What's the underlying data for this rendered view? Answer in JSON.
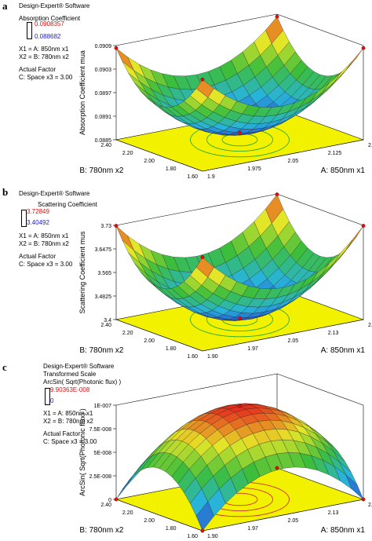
{
  "panels": [
    {
      "letter": "a",
      "software": "Design-Expert® Software",
      "scale_note": "",
      "response": "Absorption Coefficient",
      "max": "0.0908357",
      "min": "0.088682",
      "x1": "X1 = A: 850nm x1",
      "x2": "X2 = B: 780nm x2",
      "actual_factor": "Actual Factor",
      "factor_c": "C: Space x3 = 3.00",
      "zlabel": "Absorption Coefficient mua",
      "xlabel": "A: 850nm x1",
      "ylabel": "B: 780nm x2"
    },
    {
      "letter": "b",
      "software": "Design-Expert® Software",
      "scale_note": "",
      "response": "Scattering Coefficient",
      "max": "3.72849",
      "min": "3.40492",
      "x1": "X1 = A: 850nm x1",
      "x2": "X2 = B: 780nm x2",
      "actual_factor": "Actual Factor",
      "factor_c": "C: Space x3 = 3.00",
      "zlabel": "Scattering Coefficient mus",
      "xlabel": "A: 850nm x1",
      "ylabel": "B: 780nm x2"
    },
    {
      "letter": "c",
      "software": "Design-Expert® Software",
      "scale_note": "Transformed Scale",
      "response": "ArcSin( Sqrt(Photonic flux) )",
      "max": "9.90363E-008",
      "min": "0",
      "x1": "X1 = A: 850nm x1",
      "x2": "X2 = B: 780nm x2",
      "actual_factor": "Actual Factor",
      "factor_c": "C: Space x3 = 3.00",
      "zlabel": "ArcSin( Sqrt(Photonic flux) )",
      "xlabel": "A: 850nm x1",
      "ylabel": "B: 780nm x2"
    }
  ],
  "chart_data": [
    {
      "type": "surface",
      "title": "",
      "zlabel": "Absorption Coefficient mua",
      "xlabel": "A: 850nm x1",
      "ylabel": "B: 780nm x2",
      "x_ticks": [
        "1.9",
        "1.975",
        "2.05",
        "2.125",
        "2.2"
      ],
      "y_ticks": [
        "1.60",
        "1.80",
        "2.00",
        "2.20",
        "2.40"
      ],
      "z_ticks": [
        "0.0885",
        "0.0891",
        "0.0897",
        "0.0903",
        "0.0909"
      ],
      "xlim": [
        1.9,
        2.2
      ],
      "ylim": [
        1.6,
        2.4
      ],
      "zlim": [
        0.0885,
        0.0909
      ],
      "shape": "bowl",
      "surface_min": 0.088682,
      "surface_max": 0.0908357
    },
    {
      "type": "surface",
      "title": "",
      "zlabel": "Scattering Coefficient mus",
      "xlabel": "A: 850nm x1",
      "ylabel": "B: 780nm x2",
      "x_ticks": [
        "1.90",
        "1.97",
        "2.05",
        "2.13",
        "2.20"
      ],
      "y_ticks": [
        "1.60",
        "1.80",
        "2.00",
        "2.20",
        "2.40"
      ],
      "z_ticks": [
        "3.4",
        "3.4825",
        "3.565",
        "3.6475",
        "3.73"
      ],
      "xlim": [
        1.9,
        2.2
      ],
      "ylim": [
        1.6,
        2.4
      ],
      "zlim": [
        3.4,
        3.73
      ],
      "shape": "bowl",
      "surface_min": 3.40492,
      "surface_max": 3.72849
    },
    {
      "type": "surface",
      "title": "",
      "zlabel": "ArcSin( Sqrt(Photonic flux) )",
      "xlabel": "A: 850nm x1",
      "ylabel": "B: 780nm x2",
      "x_ticks": [
        "1.90",
        "1.97",
        "2.05",
        "2.13",
        "2.20"
      ],
      "y_ticks": [
        "1.60",
        "1.80",
        "2.00",
        "2.20",
        "2.40"
      ],
      "z_ticks": [
        "0",
        "2.5E-008",
        "5E-008",
        "7.5E-008",
        "1E-007"
      ],
      "xlim": [
        1.9,
        2.2
      ],
      "ylim": [
        1.6,
        2.4
      ],
      "zlim": [
        0,
        1e-07
      ],
      "shape": "dome",
      "surface_min": 0,
      "surface_max": 9.90363e-08
    }
  ],
  "colors": {
    "floor": "#f2f200",
    "contour": "#2fa82f",
    "max": "#e01010",
    "min": "#2020d0"
  }
}
